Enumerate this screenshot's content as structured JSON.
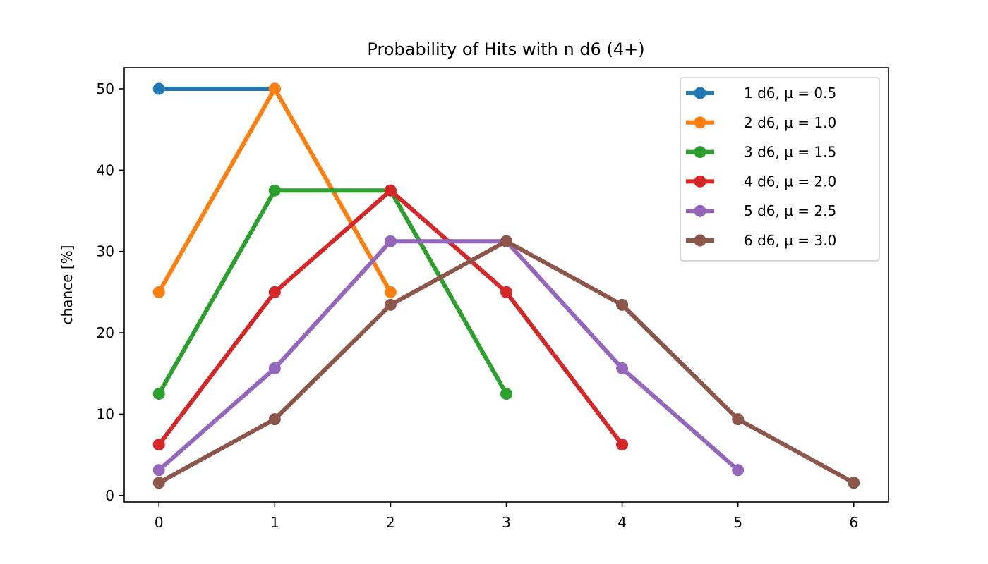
{
  "chart_data": {
    "type": "line",
    "title": "Probability of Hits with n d6 (4+)",
    "xlabel": "",
    "ylabel": "chance [%]",
    "xlim": [
      -0.3,
      6.3
    ],
    "ylim": [
      -0.8,
      52.6
    ],
    "xticks": [
      0,
      1,
      2,
      3,
      4,
      5,
      6
    ],
    "yticks": [
      0,
      10,
      20,
      30,
      40,
      50
    ],
    "grid": false,
    "legend_position": "top-right",
    "marker": "circle",
    "series": [
      {
        "name": "1 d6, µ = 0.5",
        "color": "#1f77b4",
        "x": [
          0,
          1
        ],
        "values": [
          50,
          50
        ]
      },
      {
        "name": "2 d6, µ = 1.0",
        "color": "#ff7f0e",
        "x": [
          0,
          1,
          2
        ],
        "values": [
          25,
          50,
          25
        ]
      },
      {
        "name": "3 d6, µ = 1.5",
        "color": "#2ca02c",
        "x": [
          0,
          1,
          2,
          3
        ],
        "values": [
          12.5,
          37.5,
          37.5,
          12.5
        ]
      },
      {
        "name": "4 d6, µ = 2.0",
        "color": "#d62728",
        "x": [
          0,
          1,
          2,
          3,
          4
        ],
        "values": [
          6.25,
          25,
          37.5,
          25,
          6.25
        ]
      },
      {
        "name": "5 d6, µ = 2.5",
        "color": "#9467bd",
        "x": [
          0,
          1,
          2,
          3,
          4,
          5
        ],
        "values": [
          3.125,
          15.625,
          31.25,
          31.25,
          15.625,
          3.125
        ]
      },
      {
        "name": "6 d6, µ = 3.0",
        "color": "#8c564b",
        "x": [
          0,
          1,
          2,
          3,
          4,
          5,
          6
        ],
        "values": [
          1.5625,
          9.375,
          23.4375,
          31.25,
          23.4375,
          9.375,
          1.5625
        ]
      }
    ]
  }
}
